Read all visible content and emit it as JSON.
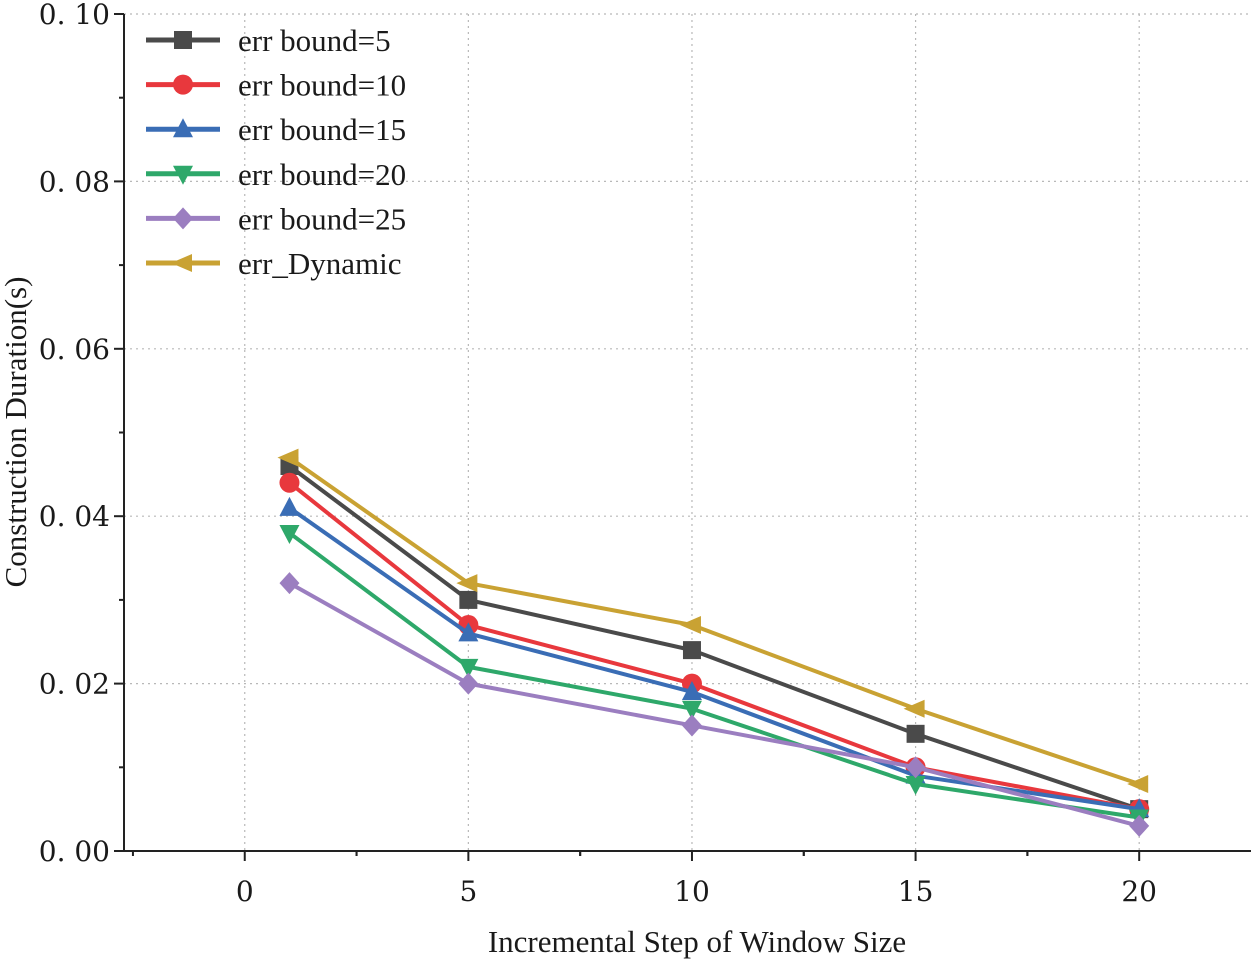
{
  "chart_data": {
    "type": "line",
    "title": "",
    "xlabel": "Incremental Step of Window Size",
    "ylabel": "Construction Duration(s)",
    "x": [
      1,
      5,
      10,
      15,
      20
    ],
    "xlim": [
      -2.7,
      22.5
    ],
    "ylim": [
      0,
      0.1
    ],
    "xticks": [
      0,
      5,
      10,
      15,
      20
    ],
    "xtick_labels": [
      "0",
      "5",
      "10",
      "15",
      "20"
    ],
    "yticks": [
      0,
      0.02,
      0.04,
      0.06,
      0.08,
      0.1
    ],
    "ytick_labels": [
      "0. 00",
      "0. 02",
      "0. 04",
      "0. 06",
      "0. 08",
      "0. 10"
    ],
    "grid": true,
    "legend_position": "top-left",
    "series": [
      {
        "name": "err bound=5",
        "color": "#4a4a4a",
        "marker": "square",
        "values": [
          0.046,
          0.03,
          0.024,
          0.014,
          0.005
        ]
      },
      {
        "name": "err bound=10",
        "color": "#e8383d",
        "marker": "circle",
        "values": [
          0.044,
          0.027,
          0.02,
          0.01,
          0.005
        ]
      },
      {
        "name": "err bound=15",
        "color": "#3a6db5",
        "marker": "triangle-up",
        "values": [
          0.041,
          0.026,
          0.019,
          0.009,
          0.005
        ]
      },
      {
        "name": "err bound=20",
        "color": "#2ea86a",
        "marker": "triangle-down",
        "values": [
          0.038,
          0.022,
          0.017,
          0.008,
          0.004
        ]
      },
      {
        "name": "err bound=25",
        "color": "#9b7ec0",
        "marker": "diamond",
        "values": [
          0.032,
          0.02,
          0.015,
          0.01,
          0.003
        ]
      },
      {
        "name": "err_Dynamic",
        "color": "#c9a233",
        "marker": "triangle-left",
        "values": [
          0.047,
          0.032,
          0.027,
          0.017,
          0.008
        ]
      }
    ]
  }
}
